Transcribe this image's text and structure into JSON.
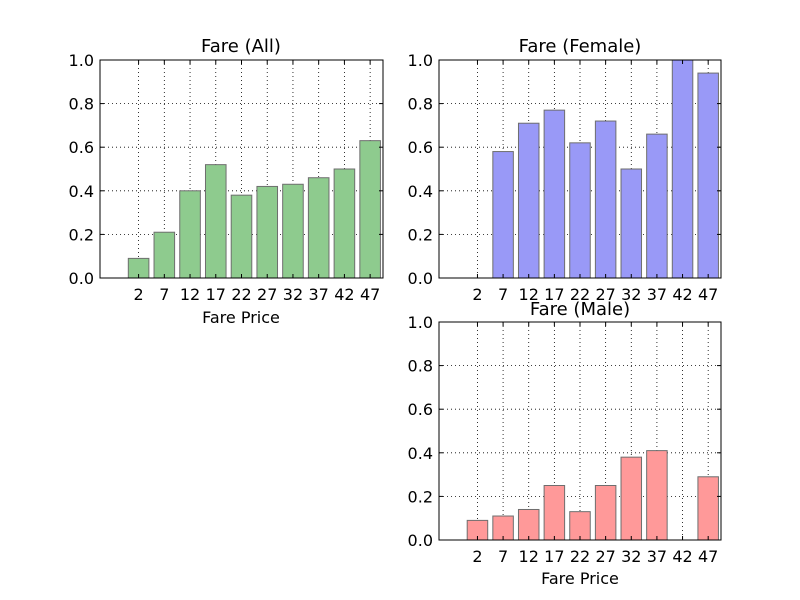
{
  "chart_data": [
    {
      "type": "bar",
      "title": "Fare (All)",
      "xlabel": "Fare Price",
      "ylabel": "",
      "categories": [
        "2",
        "7",
        "12",
        "17",
        "22",
        "27",
        "32",
        "37",
        "42",
        "47"
      ],
      "values": [
        0.09,
        0.21,
        0.4,
        0.52,
        0.38,
        0.42,
        0.43,
        0.46,
        0.5,
        0.63
      ],
      "ylim": [
        0,
        1.0
      ],
      "yticks": [
        "0.0",
        "0.2",
        "0.4",
        "0.6",
        "0.8",
        "1.0"
      ],
      "color": "#8ecb8e",
      "grid": true
    },
    {
      "type": "bar",
      "title": "Fare (Female)",
      "xlabel": "",
      "ylabel": "",
      "categories": [
        "2",
        "7",
        "12",
        "17",
        "22",
        "27",
        "32",
        "37",
        "42",
        "47"
      ],
      "values": [
        0,
        0.58,
        0.71,
        0.77,
        0.62,
        0.72,
        0.5,
        0.66,
        1.0,
        0.94
      ],
      "ylim": [
        0,
        1.0
      ],
      "yticks": [
        "0.0",
        "0.2",
        "0.4",
        "0.6",
        "0.8",
        "1.0"
      ],
      "color": "#9999f7",
      "grid": true
    },
    {
      "type": "bar",
      "title": "Fare (Male)",
      "xlabel": "Fare Price",
      "ylabel": "",
      "categories": [
        "2",
        "7",
        "12",
        "17",
        "22",
        "27",
        "32",
        "37",
        "42",
        "47"
      ],
      "values": [
        0.09,
        0.11,
        0.14,
        0.25,
        0.13,
        0.25,
        0.38,
        0.41,
        0,
        0.29
      ],
      "ylim": [
        0,
        1.0
      ],
      "yticks": [
        "0.0",
        "0.2",
        "0.4",
        "0.6",
        "0.8",
        "1.0"
      ],
      "color": "#ff9999",
      "grid": true
    }
  ]
}
